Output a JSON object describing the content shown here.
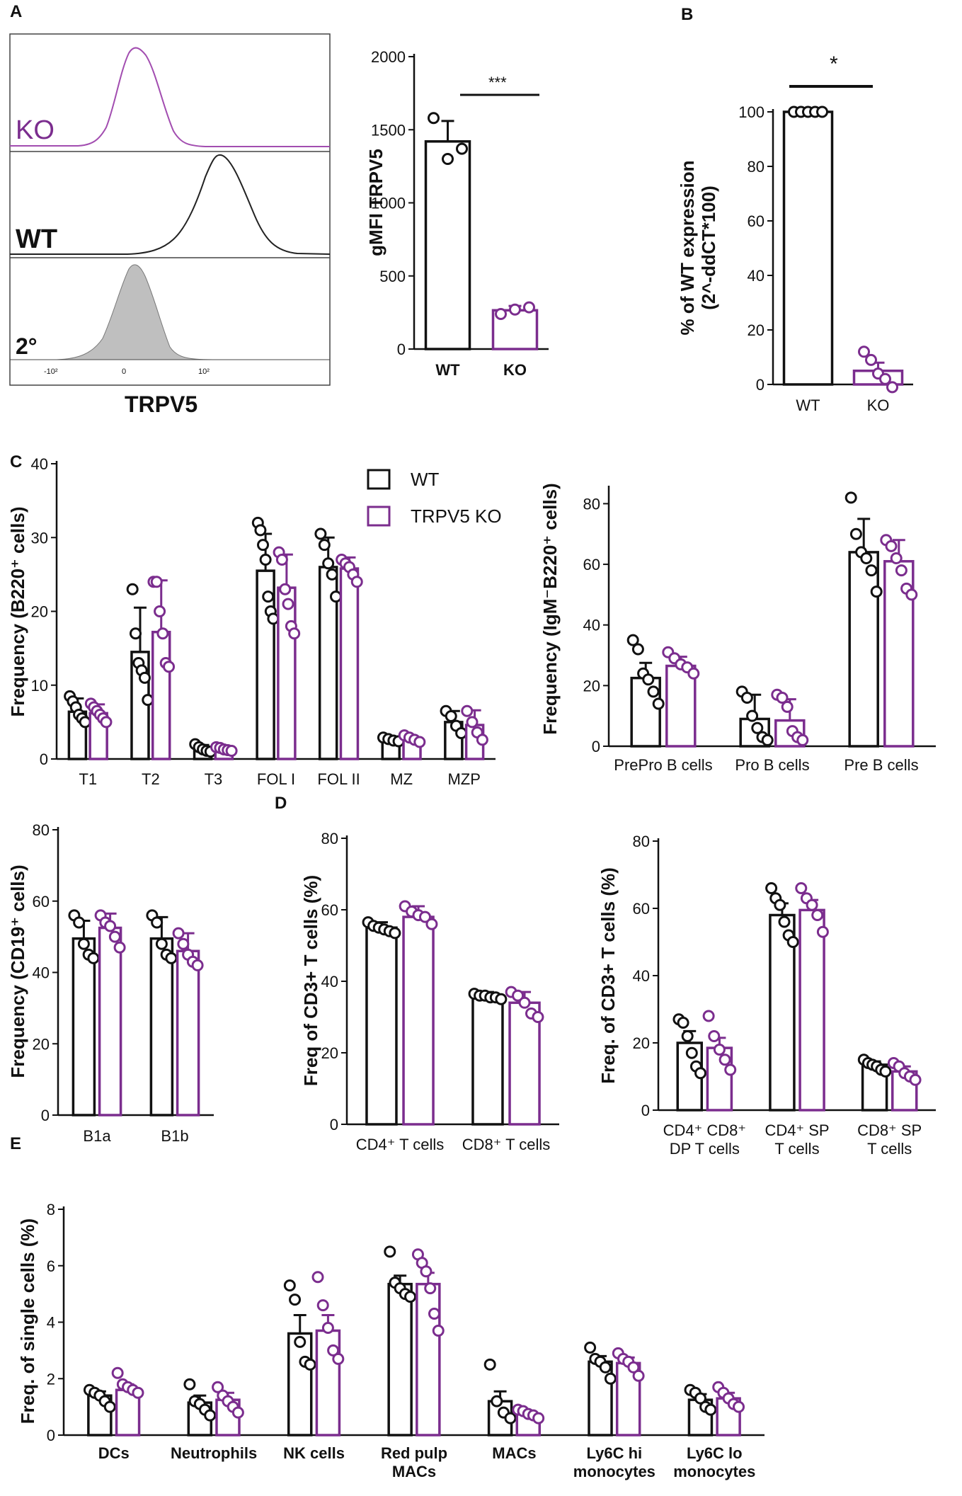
{
  "colors": {
    "wt": "#111111",
    "ko": "#7b2d8e",
    "shade": "#bfbfbf"
  },
  "panels": {
    "A": "A",
    "B": "B",
    "C": "C",
    "D": "D",
    "E": "E"
  },
  "histogram": {
    "rows": [
      "KO",
      "WT",
      "2°"
    ],
    "xlabel": "TRPV5",
    "ticks": [
      "-10²",
      "0",
      "10²"
    ]
  },
  "legend": {
    "wt": "WT",
    "ko": "TRPV5 KO"
  },
  "significance": {
    "a": "***",
    "b": "*"
  },
  "chart_data": [
    {
      "id": "a2",
      "type": "bar",
      "title": "",
      "ylabel": "gMFI TRPV5",
      "ylim": [
        0,
        2000
      ],
      "yticks": [
        0,
        500,
        1000,
        1500,
        2000
      ],
      "categories": [
        "WT",
        "KO"
      ],
      "series": [
        {
          "name": "",
          "values": [
            1420,
            265
          ],
          "err": [
            140,
            30
          ]
        }
      ],
      "points": [
        [
          [
            1580,
            1300,
            1370
          ]
        ],
        [
          [
            240,
            270,
            285
          ]
        ]
      ]
    },
    {
      "id": "b",
      "type": "bar",
      "title": "",
      "ylabel": "% of WT expression",
      "ylabel2": "(2^-ddCT*100)",
      "ylim": [
        0,
        100
      ],
      "yticks": [
        0,
        20,
        40,
        60,
        80,
        100
      ],
      "categories": [
        "WT",
        "KO"
      ],
      "series": [
        {
          "name": "",
          "values": [
            100,
            5
          ],
          "err": [
            0,
            3
          ]
        }
      ],
      "points": [
        [
          [
            100,
            100,
            100,
            100,
            100
          ]
        ],
        [
          [
            12,
            9,
            4,
            2,
            -1
          ]
        ]
      ]
    },
    {
      "id": "c1",
      "type": "bar",
      "title": "",
      "ylabel": "Frequency (B220⁺ cells)",
      "ylim": [
        0,
        40
      ],
      "yticks": [
        0,
        10,
        20,
        30,
        40
      ],
      "categories": [
        "T1",
        "T2",
        "T3",
        "FOL I",
        "FOL II",
        "MZ",
        "MZP"
      ],
      "series": [
        {
          "name": "WT",
          "values": [
            6.4,
            14.5,
            1.4,
            25.5,
            26,
            2.6,
            5
          ],
          "err": [
            1.8,
            6,
            0.5,
            5,
            4,
            0.4,
            1.5
          ]
        },
        {
          "name": "TRPV5 KO",
          "values": [
            6.2,
            17.2,
            1.3,
            23.2,
            25.8,
            2.6,
            4.6
          ],
          "err": [
            1.2,
            7,
            0.3,
            4.5,
            1.5,
            0.5,
            2
          ]
        }
      ],
      "points": [
        [
          [
            8.5,
            7.8,
            7,
            6,
            5.5,
            5
          ],
          [
            23,
            17,
            13,
            12,
            11,
            8
          ],
          [
            2,
            1.6,
            1.3,
            1.1,
            1
          ],
          [
            32,
            31,
            29,
            27,
            22,
            20,
            19
          ],
          [
            30.5,
            29,
            26.5,
            25,
            22
          ]
        ],
        [
          [
            7.5,
            7,
            6.5,
            6,
            5.5,
            5
          ],
          [
            24,
            24,
            20,
            17,
            13,
            12.5
          ],
          [
            1.6,
            1.5,
            1.3,
            1.2,
            1.1
          ],
          [
            28,
            27,
            23,
            21,
            18,
            17
          ],
          [
            27,
            26.5,
            26,
            25,
            24
          ]
        ]
      ],
      "points_tail": [
        [
          [
            2.9,
            2.7,
            2.5,
            2.4
          ],
          [
            6.5,
            5.8,
            4.5,
            3.5
          ]
        ],
        [
          [
            3.2,
            2.9,
            2.6,
            2.3
          ],
          [
            6.5,
            5,
            3.6,
            2.6
          ]
        ]
      ]
    },
    {
      "id": "c2",
      "type": "bar",
      "title": "",
      "ylabel": "Frequency (IgM⁻B220⁺ cells)",
      "ylim": [
        0,
        85
      ],
      "yticks": [
        0,
        20,
        40,
        60,
        80
      ],
      "categories": [
        "PrePro  B cells",
        "Pro B cells",
        "Pre B cells"
      ],
      "series": [
        {
          "name": "WT",
          "values": [
            22.5,
            9,
            64
          ],
          "err": [
            5,
            8,
            11
          ]
        },
        {
          "name": "TRPV5 KO",
          "values": [
            26.5,
            8.5,
            61
          ],
          "err": [
            3,
            7,
            7
          ]
        }
      ],
      "points": [
        [
          [
            35,
            32,
            24,
            22,
            18,
            14
          ],
          [
            18,
            16,
            10,
            6,
            3,
            2
          ],
          [
            82,
            70,
            64,
            62,
            58,
            51
          ]
        ],
        [
          [
            31,
            29,
            27,
            26,
            24
          ],
          [
            17,
            16,
            13,
            5,
            3,
            2
          ],
          [
            68,
            66,
            62,
            58,
            52,
            50
          ]
        ]
      ]
    },
    {
      "id": "c3",
      "type": "bar",
      "title": "",
      "ylabel": "Frequency (CD19⁺ cells)",
      "ylim": [
        0,
        80
      ],
      "yticks": [
        0,
        20,
        40,
        60,
        80
      ],
      "categories": [
        "B1a",
        "B1b"
      ],
      "series": [
        {
          "name": "WT",
          "values": [
            49.5,
            49.5
          ],
          "err": [
            5,
            6
          ]
        },
        {
          "name": "TRPV5 KO",
          "values": [
            52.5,
            46
          ],
          "err": [
            4,
            5
          ]
        }
      ],
      "points": [
        [
          [
            56,
            54,
            48,
            45,
            44
          ],
          [
            56,
            54,
            48,
            45,
            44
          ]
        ],
        [
          [
            56,
            54,
            53,
            50,
            47
          ],
          [
            51,
            48,
            45,
            43,
            42
          ]
        ]
      ]
    },
    {
      "id": "d1",
      "type": "bar",
      "title": "",
      "ylabel": "Freq of CD3+ T cells (%)",
      "ylim": [
        0,
        80
      ],
      "yticks": [
        0,
        20,
        40,
        60,
        80
      ],
      "categories": [
        "CD4⁺ T cells",
        "CD8⁺ T cells"
      ],
      "series": [
        {
          "name": "WT",
          "values": [
            55,
            36
          ],
          "err": [
            1.5,
            1
          ]
        },
        {
          "name": "TRPV5 KO",
          "values": [
            58,
            34
          ],
          "err": [
            3,
            3
          ]
        }
      ],
      "points": [
        [
          [
            56.5,
            55.5,
            55,
            54.5,
            54,
            53.5
          ],
          [
            36.5,
            36,
            36,
            35.5,
            35.5,
            35
          ]
        ],
        [
          [
            61,
            59.5,
            58.5,
            58,
            56
          ],
          [
            37,
            36,
            34,
            31,
            30
          ]
        ]
      ]
    },
    {
      "id": "d2",
      "type": "bar",
      "title": "",
      "ylabel": "Freq. of CD3+ T cells (%)",
      "ylim": [
        0,
        80
      ],
      "yticks": [
        0,
        20,
        40,
        60,
        80
      ],
      "categories": [
        "CD4⁺ CD8⁺|DP T cells",
        "CD4⁺ SP|T cells",
        "CD8⁺ SP|T cells"
      ],
      "series": [
        {
          "name": "WT",
          "values": [
            20,
            58,
            13.5
          ],
          "err": [
            3.5,
            3.5,
            1
          ]
        },
        {
          "name": "TRPV5 KO",
          "values": [
            18.5,
            59.5,
            11.5
          ],
          "err": [
            3,
            3,
            1.5
          ]
        }
      ],
      "points": [
        [
          [
            27,
            26,
            22,
            17,
            13,
            11
          ],
          [
            66,
            63,
            61,
            56,
            52,
            50
          ],
          [
            15,
            14,
            13.5,
            13,
            12,
            11.5
          ]
        ],
        [
          [
            28,
            22,
            18,
            15,
            12
          ],
          [
            66,
            63,
            61,
            58,
            53
          ],
          [
            14,
            13,
            11,
            10,
            9
          ]
        ]
      ]
    },
    {
      "id": "e",
      "type": "bar",
      "title": "",
      "ylabel": "Freq. of single cells (%)",
      "ylim": [
        0,
        8
      ],
      "yticks": [
        0,
        2,
        4,
        6,
        8
      ],
      "categories": [
        "DCs",
        "Neutrophils",
        "NK cells",
        "Red pulp|MACs",
        "MACs",
        "Ly6C hi|monocytes",
        "Ly6C lo|monocytes"
      ],
      "series": [
        {
          "name": "WT",
          "values": [
            1.4,
            1.15,
            3.6,
            5.35,
            1.2,
            2.6,
            1.25
          ],
          "err": [
            0.15,
            0.25,
            0.65,
            0.3,
            0.35,
            0.2,
            0.2
          ]
        },
        {
          "name": "TRPV5 KO",
          "values": [
            1.6,
            1.25,
            3.7,
            5.35,
            0.75,
            2.55,
            1.3
          ],
          "err": [
            0.2,
            0.25,
            0.55,
            0.4,
            0.1,
            0.2,
            0.2
          ]
        }
      ],
      "points": [
        [
          [
            1.6,
            1.5,
            1.4,
            1.2,
            1.0
          ],
          [
            1.8,
            1.2,
            1.1,
            0.9,
            0.7
          ],
          [
            5.3,
            4.8,
            3.3,
            2.6,
            2.5
          ],
          [
            6.5,
            5.4,
            5.2,
            5.0,
            4.9
          ],
          [
            2.5,
            1.2,
            0.8,
            0.6
          ],
          [
            3.1,
            2.7,
            2.6,
            2.4,
            2.0
          ],
          [
            1.6,
            1.5,
            1.3,
            1.0,
            0.9
          ]
        ],
        [
          [
            2.2,
            1.8,
            1.7,
            1.6,
            1.5
          ],
          [
            1.7,
            1.4,
            1.2,
            1.0,
            0.8
          ],
          [
            5.6,
            4.6,
            3.8,
            3.0,
            2.7
          ],
          [
            6.4,
            6.1,
            5.8,
            5.2,
            4.3,
            3.7
          ],
          [
            0.9,
            0.85,
            0.75,
            0.7,
            0.6
          ],
          [
            2.9,
            2.7,
            2.6,
            2.4,
            2.1
          ],
          [
            1.7,
            1.5,
            1.3,
            1.1,
            1.0
          ]
        ]
      ]
    }
  ]
}
